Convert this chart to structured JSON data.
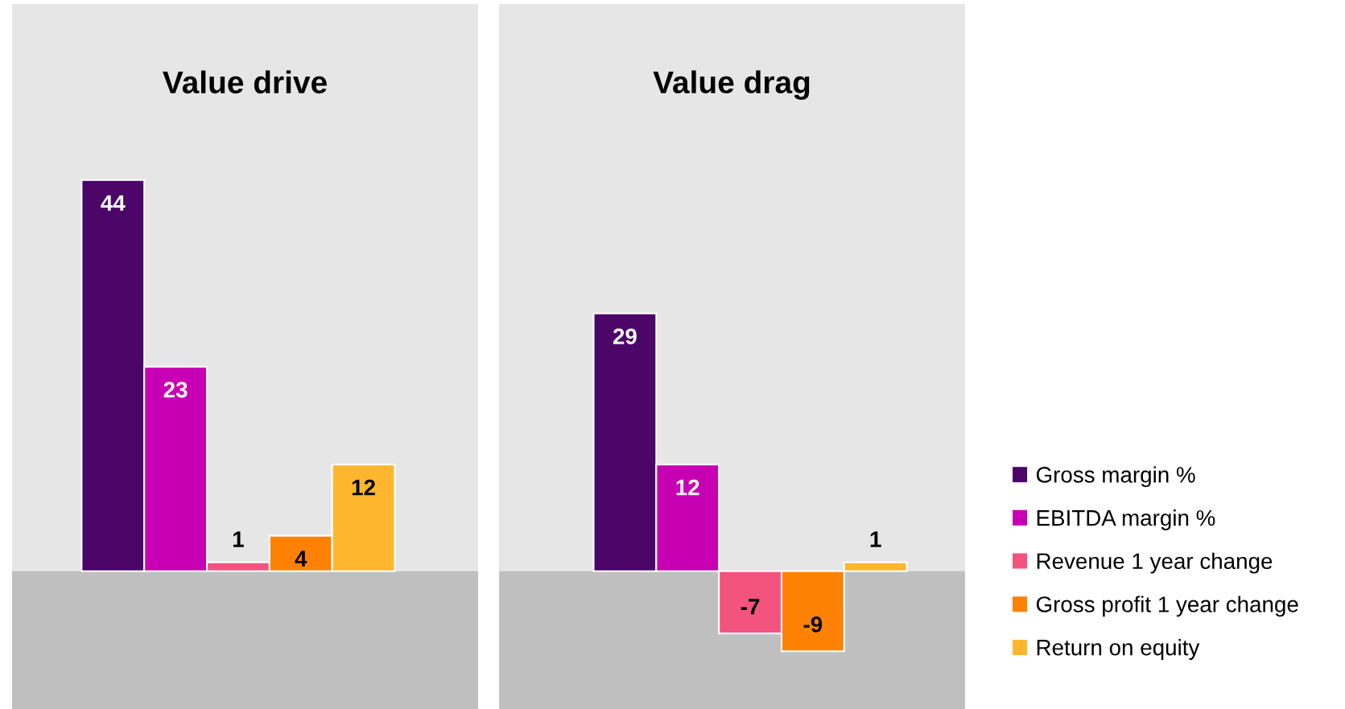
{
  "chart_data": [
    {
      "type": "bar",
      "title": "Value drive",
      "categories": [
        null
      ],
      "data_labels": true,
      "ylim": [
        -15.5,
        63.8
      ],
      "bands": [
        {
          "axis": "y",
          "from": -15.5,
          "to": 0,
          "color": "#bfbfbf"
        }
      ],
      "series": [
        {
          "color": "#4b0668",
          "values": [
            44
          ]
        },
        {
          "color": "#c800b4",
          "values": [
            23
          ]
        },
        {
          "color": "#f2547d",
          "values": [
            1
          ]
        },
        {
          "color": "#fd8204",
          "values": [
            4
          ]
        },
        {
          "color": "#ffb62f",
          "values": [
            12
          ]
        }
      ]
    },
    {
      "type": "bar",
      "title": "Value drag",
      "categories": [
        null
      ],
      "data_labels": true,
      "ylim": [
        -15.5,
        63.8
      ],
      "legend": "right",
      "bands": [
        {
          "axis": "y",
          "from": -15.5,
          "to": 0,
          "color": "#bfbfbf"
        }
      ],
      "series": [
        {
          "name": "Gross margin %",
          "color": "#4b0668",
          "values": [
            29
          ]
        },
        {
          "name": "EBITDA margin %",
          "color": "#c800b4",
          "values": [
            12
          ]
        },
        {
          "name": "Revenue 1 year change",
          "color": "#f2547d",
          "values": [
            -7
          ]
        },
        {
          "name": "Gross profit 1 year change",
          "color": "#fd8204",
          "values": [
            -9
          ]
        },
        {
          "name": "Return on equity",
          "color": "#ffb62f",
          "values": [
            1
          ]
        }
      ]
    }
  ]
}
